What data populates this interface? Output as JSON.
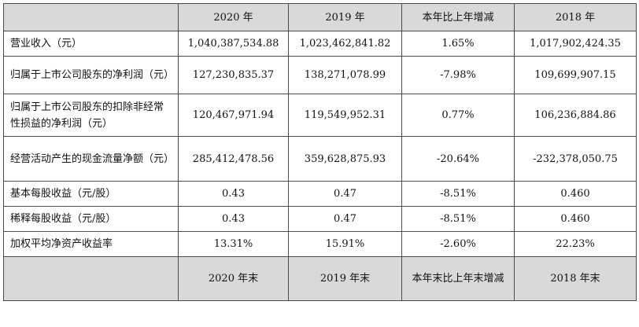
{
  "header": {
    "col1": "2020 年",
    "col2": "2019 年",
    "col3": "本年比上年增减",
    "col4": "2018 年"
  },
  "rows": [
    {
      "label": "营业收入（元）",
      "v2020": "1,040,387,534.88",
      "v2019": "1,023,462,841.82",
      "change": "1.65%",
      "v2018": "1,017,902,424.35"
    },
    {
      "label": "归属于上市公司股东的净利润（元）",
      "v2020": "127,230,835.37",
      "v2019": "138,271,078.99",
      "change": "-7.98%",
      "v2018": "109,699,907.15"
    },
    {
      "label": "归属于上市公司股东的扣除非经常性损益的净利润（元）",
      "v2020": "120,467,971.94",
      "v2019": "119,549,952.31",
      "change": "0.77%",
      "v2018": "106,236,884.86"
    },
    {
      "label": "经营活动产生的现金流量净额（元）",
      "v2020": "285,412,478.56",
      "v2019": "359,628,875.93",
      "change": "-20.64%",
      "v2018": "-232,378,050.75"
    },
    {
      "label": "基本每股收益（元/股）",
      "v2020": "0.43",
      "v2019": "0.47",
      "change": "-8.51%",
      "v2018": "0.460"
    },
    {
      "label": "稀释每股收益（元/股）",
      "v2020": "0.43",
      "v2019": "0.47",
      "change": "-8.51%",
      "v2018": "0.460"
    },
    {
      "label": "加权平均净资产收益率",
      "v2020": "13.31%",
      "v2019": "15.91%",
      "change": "-2.60%",
      "v2018": "22.23%"
    }
  ],
  "footer_header": {
    "col1": "2020 年末",
    "col2": "2019 年末",
    "col3": "本年末比上年末增减",
    "col4": "2018 年末"
  }
}
